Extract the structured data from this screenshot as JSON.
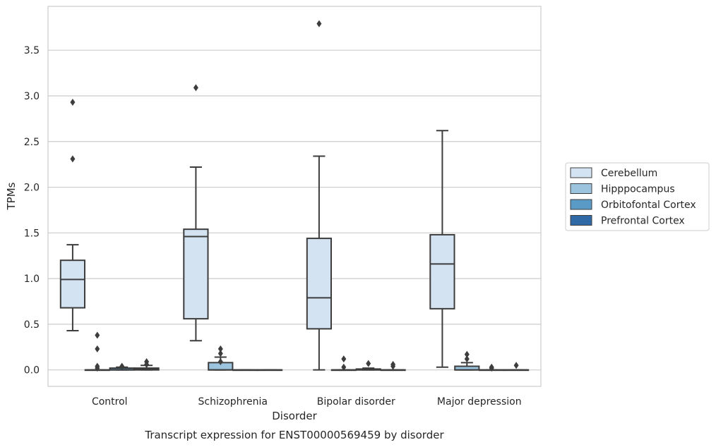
{
  "caption": "Transcript expression for ENST00000569459 by disorder",
  "chart_data": {
    "type": "box",
    "xlabel": "Disorder",
    "ylabel": "TPMs",
    "ylim": [
      -0.18,
      3.98
    ],
    "yticks": [
      "0.0",
      "0.5",
      "1.0",
      "1.5",
      "2.0",
      "2.5",
      "3.0",
      "3.5"
    ],
    "grid": "horizontal",
    "legend_position": "right",
    "categories": [
      "Control",
      "Schizophrenia",
      "Bipolar disorder",
      "Major depression"
    ],
    "series": [
      {
        "name": "Cerebellum",
        "color": "#d4e3f2",
        "boxes": [
          {
            "whislo": 0.43,
            "q1": 0.68,
            "med": 0.99,
            "q3": 1.2,
            "whishi": 1.37,
            "fliers": [
              2.31,
              2.93
            ]
          },
          {
            "whislo": 0.32,
            "q1": 0.56,
            "med": 1.46,
            "q3": 1.54,
            "whishi": 2.22,
            "fliers": [
              3.09
            ]
          },
          {
            "whislo": 0.0,
            "q1": 0.45,
            "med": 0.79,
            "q3": 1.44,
            "whishi": 2.34,
            "fliers": [
              3.79
            ]
          },
          {
            "whislo": 0.03,
            "q1": 0.67,
            "med": 1.16,
            "q3": 1.48,
            "whishi": 2.62,
            "fliers": []
          }
        ]
      },
      {
        "name": "Hipppocampus",
        "color": "#9dc4de",
        "boxes": [
          {
            "whislo": 0.0,
            "q1": 0.0,
            "med": 0.0,
            "q3": 0.0,
            "whishi": 0.0,
            "fliers": [
              0.02,
              0.04,
              0.23,
              0.38
            ]
          },
          {
            "whislo": 0.0,
            "q1": 0.0,
            "med": 0.0,
            "q3": 0.08,
            "whishi": 0.14,
            "fliers": [
              0.09,
              0.18,
              0.23
            ]
          },
          {
            "whislo": 0.0,
            "q1": 0.0,
            "med": 0.0,
            "q3": 0.0,
            "whishi": 0.0,
            "fliers": [
              0.03,
              0.12
            ]
          },
          {
            "whislo": 0.0,
            "q1": 0.0,
            "med": 0.0,
            "q3": 0.04,
            "whishi": 0.08,
            "fliers": [
              0.12,
              0.17
            ]
          }
        ]
      },
      {
        "name": "Orbitofontal Cortex",
        "color": "#5a9ac6",
        "boxes": [
          {
            "whislo": 0.0,
            "q1": 0.0,
            "med": 0.0,
            "q3": 0.02,
            "whishi": 0.03,
            "fliers": [
              0.04
            ]
          },
          {
            "whislo": 0.0,
            "q1": 0.0,
            "med": 0.0,
            "q3": 0.0,
            "whishi": 0.0,
            "fliers": []
          },
          {
            "whislo": 0.0,
            "q1": 0.0,
            "med": 0.0,
            "q3": 0.01,
            "whishi": 0.02,
            "fliers": [
              0.07
            ]
          },
          {
            "whislo": 0.0,
            "q1": 0.0,
            "med": 0.0,
            "q3": 0.0,
            "whishi": 0.0,
            "fliers": [
              0.02,
              0.03
            ]
          }
        ]
      },
      {
        "name": "Prefrontal Cortex",
        "color": "#2f6aa6",
        "boxes": [
          {
            "whislo": 0.0,
            "q1": 0.0,
            "med": 0.01,
            "q3": 0.02,
            "whishi": 0.05,
            "fliers": [
              0.06,
              0.09
            ]
          },
          {
            "whislo": 0.0,
            "q1": 0.0,
            "med": 0.0,
            "q3": 0.0,
            "whishi": 0.0,
            "fliers": []
          },
          {
            "whislo": 0.0,
            "q1": 0.0,
            "med": 0.0,
            "q3": 0.0,
            "whishi": 0.0,
            "fliers": [
              0.04,
              0.06
            ]
          },
          {
            "whislo": 0.0,
            "q1": 0.0,
            "med": 0.0,
            "q3": 0.0,
            "whishi": 0.0,
            "fliers": [
              0.05
            ]
          }
        ]
      }
    ]
  }
}
